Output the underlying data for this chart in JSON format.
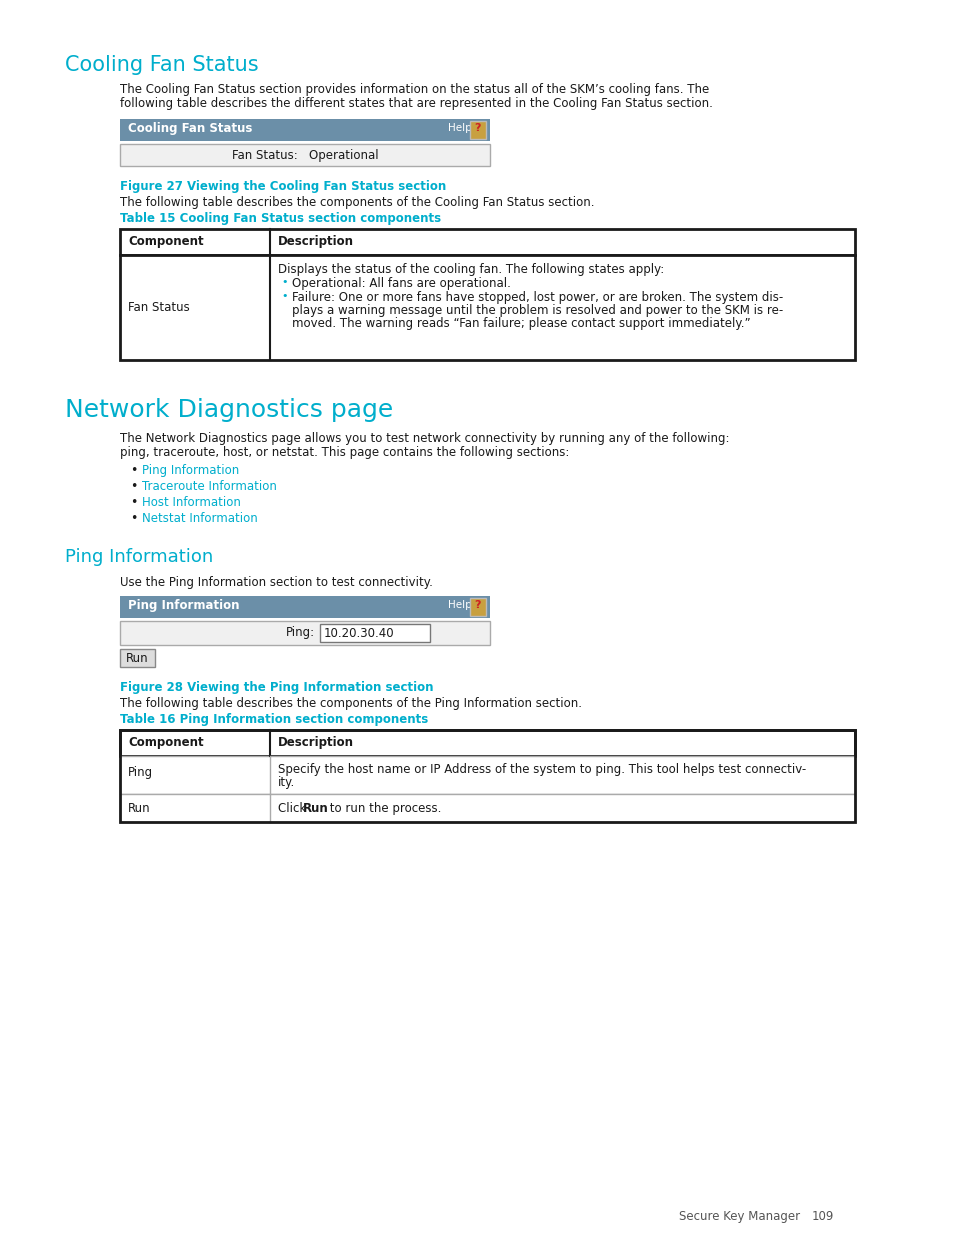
{
  "bg_color": "#ffffff",
  "cyan_color": "#00aecc",
  "text_color": "#1a1a1a",
  "gray_text": "#555555",
  "header_bg": "#6b8fa8",
  "table_border": "#000000",
  "section1_title": "Cooling Fan Status",
  "section1_body1": "The Cooling Fan Status section provides information on the status all of the SKM’s cooling fans. The",
  "section1_body2": "following table describes the different states that are represented in the Cooling Fan Status section.",
  "ui1_header": "Cooling Fan Status",
  "ui1_help": "Help",
  "ui1_row": "Fan Status:   Operational",
  "fig27_caption": "Figure 27 Viewing the Cooling Fan Status section",
  "fig27_body": "The following table describes the components of the Cooling Fan Status section.",
  "table15_caption": "Table 15 Cooling Fan Status section components",
  "table15_col1_header": "Component",
  "table15_col2_header": "Description",
  "table15_row1_col1": "Fan Status",
  "table15_row1_col2_line1": "Displays the status of the cooling fan. The following states apply:",
  "table15_row1_col2_bullet1": "Operational: All fans are operational.",
  "table15_row1_col2_bullet2a": "Failure: One or more fans have stopped, lost power, or are broken. The system dis-",
  "table15_row1_col2_bullet2b": "plays a warning message until the problem is resolved and power to the SKM is re-",
  "table15_row1_col2_bullet2c": "moved. The warning reads “Fan failure; please contact support immediately.”",
  "section2_title": "Network Diagnostics page",
  "section2_body1": "The Network Diagnostics page allows you to test network connectivity by running any of the following:",
  "section2_body2": "ping, traceroute, host, or netstat. This page contains the following sections:",
  "bullet_list": [
    "Ping Information",
    "Traceroute Information",
    "Host Information",
    "Netstat Information"
  ],
  "section3_title": "Ping Information",
  "section3_body": "Use the Ping Information section to test connectivity.",
  "ui2_header": "Ping Information",
  "ui2_help": "Help",
  "ui2_ping_label": "Ping:",
  "ui2_ping_value": "10.20.30.40",
  "ui2_button": "Run",
  "fig28_caption": "Figure 28 Viewing the Ping Information section",
  "fig28_body": "The following table describes the components of the Ping Information section.",
  "table16_caption": "Table 16 Ping Information section components",
  "table16_col1_header": "Component",
  "table16_col2_header": "Description",
  "table16_row1_col1": "Ping",
  "table16_row1_col2a": "Specify the host name or IP Address of the system to ping. This tool helps test connectiv-",
  "table16_row1_col2b": "ity.",
  "table16_row2_col1": "Run",
  "table16_row2_col2_pre": "Click ",
  "table16_row2_col2_bold": "Run",
  "table16_row2_col2_post": " to run the process.",
  "footer_text": "Secure Key Manager",
  "footer_page": "109"
}
